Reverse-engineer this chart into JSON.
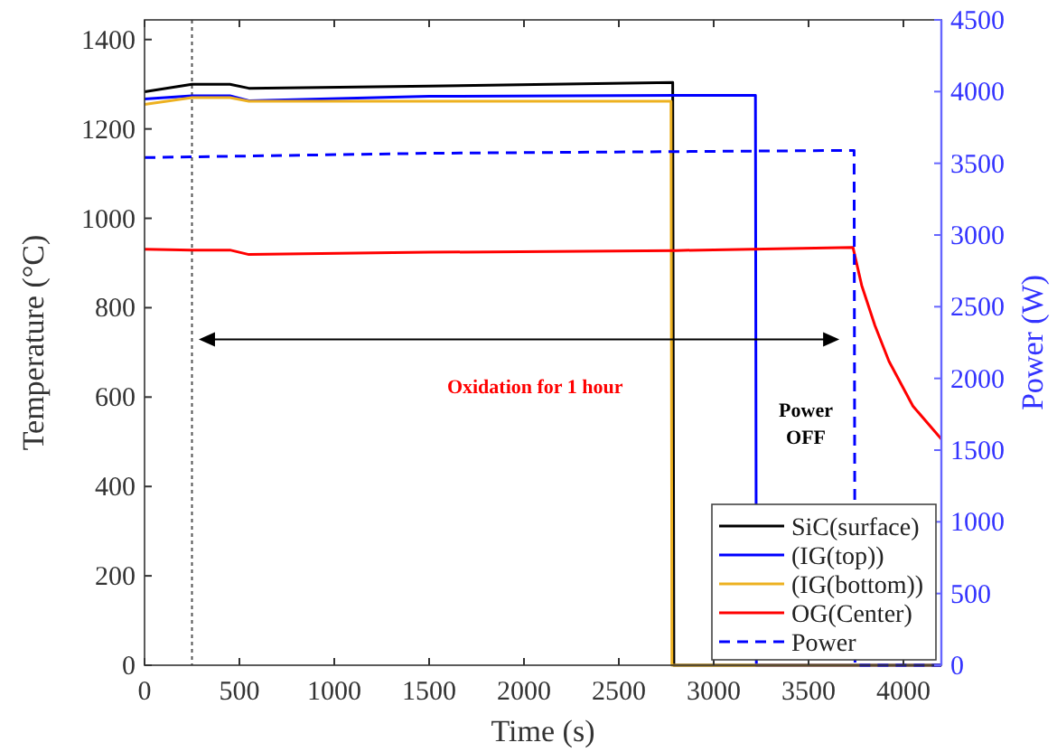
{
  "chart_data": {
    "type": "line",
    "xlabel": "Time (s)",
    "ylabel": "Temperature (°C)",
    "y2label": "Power (W)",
    "xlim": [
      0,
      4200
    ],
    "xticks": [
      0,
      500,
      1000,
      1500,
      2000,
      2500,
      3000,
      3500,
      4000
    ],
    "ylim": [
      0,
      1444
    ],
    "yticks": [
      0,
      200,
      400,
      600,
      800,
      1000,
      1200,
      1400
    ],
    "y2lim": [
      0,
      4500
    ],
    "y2ticks": [
      0,
      500,
      1000,
      1500,
      2000,
      2500,
      3000,
      3500,
      4000,
      4500
    ],
    "grid": false,
    "legend": "bottom right",
    "series": [
      {
        "name": "SiC(surface)",
        "color": "#000000",
        "line_style": "solid",
        "x": [
          0,
          250,
          450,
          550,
          1500,
          2784,
          2790,
          4200
        ],
        "values": [
          1283,
          1300,
          1300,
          1291,
          1296,
          1304,
          0,
          0
        ]
      },
      {
        "name": "(IG(top))",
        "color": "#0000ff",
        "line_style": "solid",
        "x": [
          0,
          250,
          450,
          550,
          1500,
          2800,
          3220,
          3225,
          4200
        ],
        "values": [
          1267,
          1274,
          1274,
          1263,
          1273,
          1275,
          1275,
          0,
          0
        ]
      },
      {
        "name": "(IG(bottom))",
        "color": "#edb120",
        "line_style": "solid",
        "x": [
          0,
          250,
          450,
          550,
          1500,
          2775,
          2780,
          4200
        ],
        "values": [
          1255,
          1270,
          1270,
          1262,
          1262,
          1262,
          0,
          0
        ]
      },
      {
        "name": "OG(Center)",
        "color": "#ff0000",
        "line_style": "solid",
        "x": [
          0,
          250,
          450,
          550,
          1500,
          2800,
          3734,
          3780,
          3850,
          3924,
          4050,
          4200
        ],
        "values": [
          931,
          929,
          929,
          919,
          924,
          928,
          935,
          850,
          760,
          680,
          580,
          506
        ]
      },
      {
        "name": "Power",
        "color": "#0000ff",
        "line_style": "dashed",
        "axis": "y2",
        "x": [
          0,
          1500,
          3740,
          3745,
          4200
        ],
        "values": [
          3540,
          3570,
          3590,
          0,
          0
        ]
      }
    ],
    "ref_lines": [
      {
        "axis": "x",
        "value": 250,
        "color": "#555555",
        "line_style": "dotted"
      }
    ],
    "annotations": [
      "Oxidation for 1 hour",
      "Power OFF"
    ]
  }
}
